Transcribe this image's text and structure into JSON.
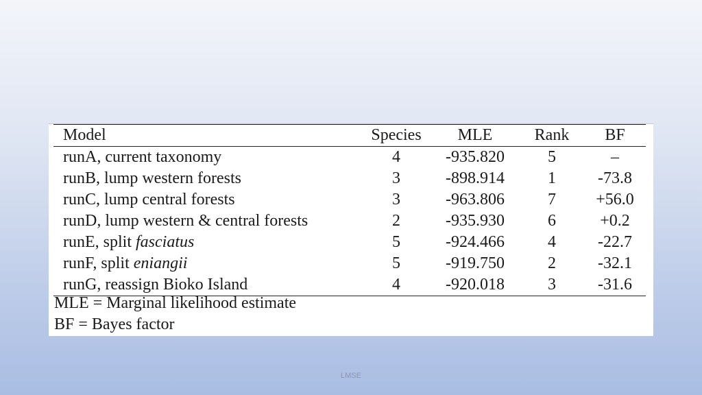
{
  "table": {
    "headers": {
      "model": "Model",
      "species": "Species",
      "mle": "MLE",
      "rank": "Rank",
      "bf": "BF"
    },
    "rows": [
      {
        "prefix": "runA, current taxonomy",
        "italic": "",
        "species": "4",
        "mle": "-935.820",
        "rank": "5",
        "bf": "–"
      },
      {
        "prefix": "runB, lump western forests",
        "italic": "",
        "species": "3",
        "mle": "-898.914",
        "rank": "1",
        "bf": "-73.8"
      },
      {
        "prefix": "runC, lump central forests",
        "italic": "",
        "species": "3",
        "mle": "-963.806",
        "rank": "7",
        "bf": "+56.0"
      },
      {
        "prefix": "runD, lump western & central forests",
        "italic": "",
        "species": "2",
        "mle": "-935.930",
        "rank": "6",
        "bf": "+0.2"
      },
      {
        "prefix": "runE, split ",
        "italic": "fasciatus",
        "species": "5",
        "mle": "-924.466",
        "rank": "4",
        "bf": "-22.7"
      },
      {
        "prefix": "runF, split ",
        "italic": "eniangii",
        "species": "5",
        "mle": "-919.750",
        "rank": "2",
        "bf": "-32.1"
      },
      {
        "prefix": "runG, reassign Bioko Island",
        "italic": "",
        "species": "4",
        "mle": "-920.018",
        "rank": "3",
        "bf": "-31.6"
      }
    ],
    "footnotes": [
      "MLE = Marginal likelihood estimate",
      "BF = Bayes factor"
    ]
  },
  "footer": {
    "text": "LMSE"
  }
}
